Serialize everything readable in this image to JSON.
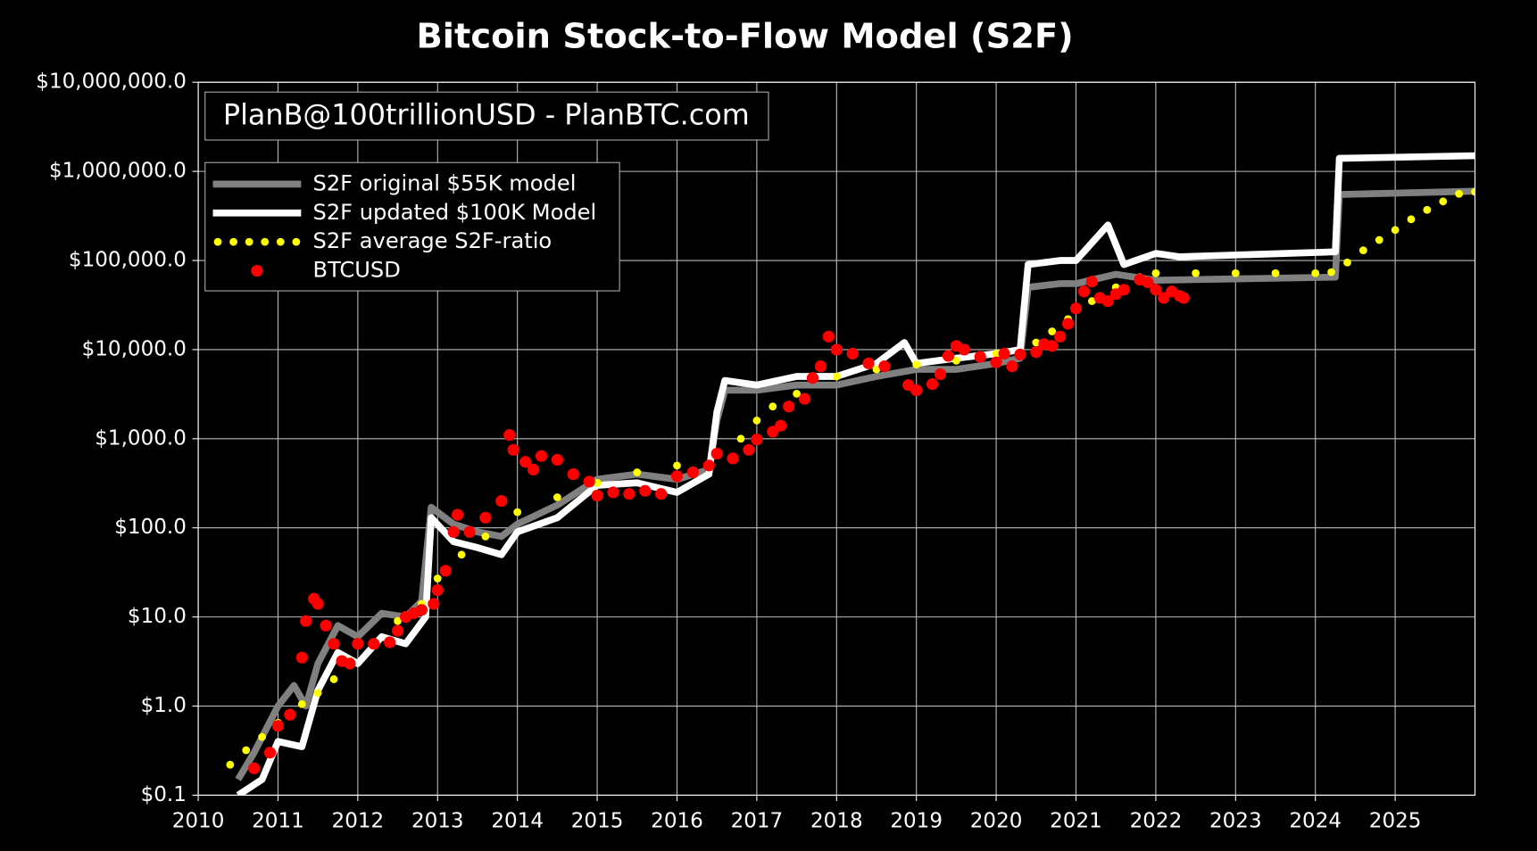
{
  "chart_data": {
    "type": "line",
    "title": "Bitcoin Stock-to-Flow Model (S2F)",
    "annotation": "PlanB@100trillionUSD - PlanBTC.com",
    "xlim": [
      2010,
      2026
    ],
    "xticks": [
      2010,
      2011,
      2012,
      2013,
      2014,
      2015,
      2016,
      2017,
      2018,
      2019,
      2020,
      2021,
      2022,
      2023,
      2024,
      2025
    ],
    "ylim": [
      0.1,
      10000000
    ],
    "ylog": true,
    "yticks": [
      {
        "value": 0.1,
        "label": "$0.1"
      },
      {
        "value": 1,
        "label": "$1.0"
      },
      {
        "value": 10,
        "label": "$10.0"
      },
      {
        "value": 100,
        "label": "$100.0"
      },
      {
        "value": 1000,
        "label": "$1,000.0"
      },
      {
        "value": 10000,
        "label": "$10,000.0"
      },
      {
        "value": 100000,
        "label": "$100,000.0"
      },
      {
        "value": 1000000,
        "label": "$1,000,000.0"
      },
      {
        "value": 10000000,
        "label": "$10,000,000.0"
      }
    ],
    "grid": true,
    "legend": "upper left",
    "series": [
      {
        "name": "S2F original $55K model",
        "color": "#808080",
        "style": "line",
        "x": [
          2010.5,
          2010.7,
          2011.0,
          2011.2,
          2011.35,
          2011.5,
          2011.75,
          2012.0,
          2012.3,
          2012.6,
          2012.8,
          2012.92,
          2013.2,
          2013.5,
          2013.8,
          2014.0,
          2014.5,
          2015.0,
          2015.5,
          2016.0,
          2016.4,
          2016.5,
          2016.6,
          2017.0,
          2017.5,
          2018.0,
          2018.5,
          2019.0,
          2019.5,
          2020.0,
          2020.3,
          2020.4,
          2020.8,
          2021.0,
          2021.5,
          2022.0,
          2024.25,
          2024.3,
          2026
        ],
        "values": [
          0.15,
          0.3,
          1.0,
          1.7,
          1.0,
          3,
          8,
          6,
          11,
          10,
          15,
          170,
          110,
          90,
          80,
          110,
          180,
          350,
          400,
          350,
          450,
          1600,
          3500,
          3500,
          4000,
          4000,
          5000,
          6000,
          6000,
          7000,
          8000,
          50000,
          55000,
          55000,
          70000,
          60000,
          65000,
          550000,
          600000
        ]
      },
      {
        "name": "S2F updated $100K Model",
        "color": "#ffffff",
        "style": "line",
        "x": [
          2010.5,
          2010.8,
          2011.0,
          2011.3,
          2011.5,
          2011.75,
          2012.0,
          2012.3,
          2012.6,
          2012.85,
          2012.92,
          2013.2,
          2013.5,
          2013.8,
          2014.0,
          2014.5,
          2015.0,
          2015.5,
          2016.0,
          2016.4,
          2016.5,
          2016.6,
          2017.0,
          2017.5,
          2018.0,
          2018.5,
          2018.85,
          2019.0,
          2019.5,
          2020.0,
          2020.3,
          2020.4,
          2020.8,
          2021.0,
          2021.4,
          2021.6,
          2022.0,
          2022.3,
          2024.25,
          2024.3,
          2026
        ],
        "values": [
          0.1,
          0.15,
          0.4,
          0.35,
          1.5,
          4,
          3,
          6,
          5,
          10,
          130,
          70,
          60,
          50,
          90,
          130,
          300,
          320,
          250,
          400,
          2000,
          4500,
          4000,
          5000,
          5000,
          7000,
          12000,
          7000,
          8000,
          9000,
          10000,
          90000,
          100000,
          100000,
          250000,
          90000,
          120000,
          110000,
          125000,
          1400000,
          1500000
        ]
      },
      {
        "name": "S2F average S2F-ratio",
        "color": "#ffff00",
        "style": "dots",
        "x": [
          2010.4,
          2010.6,
          2010.8,
          2011.0,
          2011.3,
          2011.5,
          2011.7,
          2011.9,
          2012.2,
          2012.5,
          2012.8,
          2013.0,
          2013.3,
          2013.6,
          2014.0,
          2014.5,
          2015.0,
          2015.5,
          2016.0,
          2016.5,
          2016.8,
          2017.0,
          2017.2,
          2017.5,
          2018.0,
          2018.5,
          2019.0,
          2019.5,
          2020.0,
          2020.5,
          2020.7,
          2020.9,
          2021.2,
          2021.5,
          2021.8,
          2022.0,
          2022.5,
          2023.0,
          2023.5,
          2024.0,
          2024.2,
          2024.4,
          2024.6,
          2024.8,
          2025.0,
          2025.2,
          2025.4,
          2025.6,
          2025.8,
          2026
        ],
        "values": [
          0.22,
          0.32,
          0.45,
          0.65,
          1.05,
          1.4,
          2,
          3.2,
          5,
          9,
          14,
          27,
          50,
          80,
          150,
          220,
          320,
          420,
          500,
          650,
          1000,
          1600,
          2300,
          3200,
          5000,
          6000,
          6800,
          7500,
          9000,
          12000,
          16000,
          22000,
          35000,
          50000,
          65000,
          72000,
          72000,
          72000,
          72000,
          72000,
          74000,
          95000,
          130000,
          170000,
          220000,
          290000,
          370000,
          460000,
          560000,
          590000
        ]
      },
      {
        "name": "BTCUSD",
        "color": "#ff0000",
        "style": "markers",
        "x": [
          2010.7,
          2010.9,
          2011.0,
          2011.15,
          2011.3,
          2011.35,
          2011.45,
          2011.5,
          2011.6,
          2011.7,
          2011.8,
          2011.9,
          2012.0,
          2012.2,
          2012.4,
          2012.5,
          2012.6,
          2012.7,
          2012.8,
          2012.95,
          2013.0,
          2013.1,
          2013.2,
          2013.25,
          2013.4,
          2013.6,
          2013.8,
          2013.9,
          2013.95,
          2014.1,
          2014.2,
          2014.3,
          2014.5,
          2014.7,
          2014.9,
          2015.0,
          2015.2,
          2015.4,
          2015.6,
          2015.8,
          2016.0,
          2016.2,
          2016.4,
          2016.5,
          2016.7,
          2016.9,
          2017.0,
          2017.2,
          2017.3,
          2017.4,
          2017.6,
          2017.7,
          2017.8,
          2017.9,
          2018.0,
          2018.2,
          2018.4,
          2018.6,
          2018.9,
          2019.0,
          2019.2,
          2019.3,
          2019.4,
          2019.5,
          2019.6,
          2019.8,
          2020.0,
          2020.1,
          2020.2,
          2020.3,
          2020.5,
          2020.6,
          2020.7,
          2020.8,
          2020.9,
          2021.0,
          2021.1,
          2021.2,
          2021.3,
          2021.4,
          2021.5,
          2021.6,
          2021.8,
          2021.9,
          2022.0,
          2022.1,
          2022.2,
          2022.3,
          2022.35
        ],
        "values": [
          0.2,
          0.3,
          0.6,
          0.8,
          3.5,
          9,
          16,
          14,
          8,
          5,
          3.2,
          3,
          5,
          5,
          5.2,
          7,
          10,
          11,
          12,
          14,
          20,
          33,
          90,
          140,
          90,
          130,
          200,
          1100,
          750,
          550,
          450,
          640,
          580,
          400,
          330,
          230,
          250,
          240,
          260,
          240,
          380,
          420,
          500,
          680,
          600,
          750,
          980,
          1200,
          1400,
          2300,
          2800,
          4800,
          6500,
          14000,
          10000,
          9000,
          7000,
          6500,
          4000,
          3500,
          4100,
          5300,
          8500,
          11000,
          10000,
          8300,
          7200,
          9000,
          6500,
          8800,
          9400,
          11500,
          11000,
          14000,
          19500,
          29000,
          45000,
          58000,
          38000,
          35000,
          42000,
          47000,
          61000,
          57000,
          47000,
          38000,
          45000,
          40000,
          38000
        ]
      }
    ]
  }
}
